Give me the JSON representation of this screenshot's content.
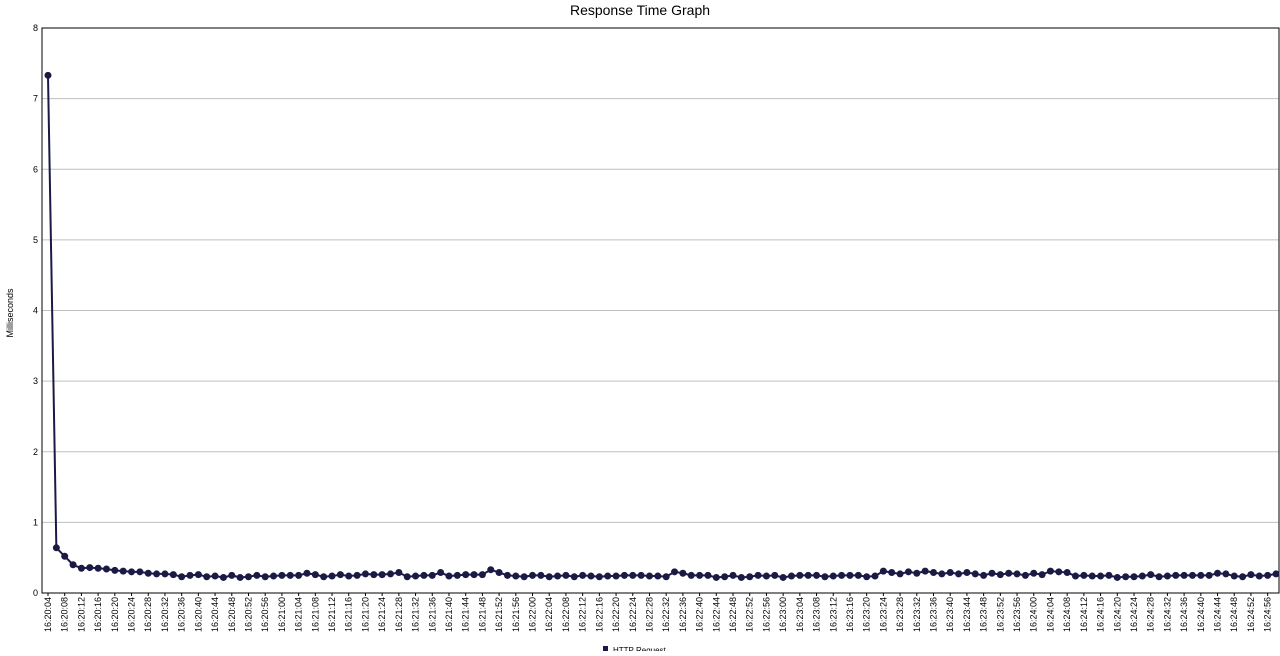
{
  "chart_data": {
    "type": "line",
    "title": "Response Time Graph",
    "y_label": "Milliseconds",
    "categories": [
      "16:20:04",
      null,
      "16:20:08",
      null,
      "16:20:12",
      null,
      "16:20:16",
      null,
      "16:20:20",
      null,
      "16:20:24",
      null,
      "16:20:28",
      null,
      "16:20:32",
      null,
      "16:20:36",
      null,
      "16:20:40",
      null,
      "16:20:44",
      null,
      "16:20:48",
      null,
      "16:20:52",
      null,
      "16:20:56",
      null,
      "16:21:00",
      null,
      "16:21:04",
      null,
      "16:21:08",
      null,
      "16:21:12",
      null,
      "16:21:16",
      null,
      "16:21:20",
      null,
      "16:21:24",
      null,
      "16:21:28",
      null,
      "16:21:32",
      null,
      "16:21:36",
      null,
      "16:21:40",
      null,
      "16:21:44",
      null,
      "16:21:48",
      null,
      "16:21:52",
      null,
      "16:21:56",
      null,
      "16:22:00",
      null,
      "16:22:04",
      null,
      "16:22:08",
      null,
      "16:22:12",
      null,
      "16:22:16",
      null,
      "16:22:20",
      null,
      "16:22:24",
      null,
      "16:22:28",
      null,
      "16:22:32",
      null,
      "16:22:36",
      null,
      "16:22:40",
      null,
      "16:22:44",
      null,
      "16:22:48",
      null,
      "16:22:52",
      null,
      "16:22:56",
      null,
      "16:23:00",
      null,
      "16:23:04",
      null,
      "16:23:08",
      null,
      "16:23:12",
      null,
      "16:23:16",
      null,
      "16:23:20",
      null,
      "16:23:24",
      null,
      "16:23:28",
      null,
      "16:23:32",
      null,
      "16:23:36",
      null,
      "16:23:40",
      null,
      "16:23:44",
      null,
      "16:23:48",
      null,
      "16:23:52",
      null,
      "16:23:56",
      null,
      "16:24:00",
      null,
      "16:24:04",
      null,
      "16:24:08",
      null,
      "16:24:12",
      null,
      "16:24:16",
      null,
      "16:24:20",
      null,
      "16:24:24",
      null,
      "16:24:28",
      null,
      "16:24:32",
      null,
      "16:24:36",
      null,
      "16:24:40",
      null,
      "16:24:44",
      null,
      "16:24:48",
      null,
      "16:24:52",
      null,
      "16:24:56",
      null
    ],
    "series": [
      {
        "name": "HTTP Request",
        "color": "#1a1a45",
        "values": [
          7.33,
          0.64,
          0.52,
          0.4,
          0.35,
          0.36,
          0.35,
          0.34,
          0.32,
          0.31,
          0.3,
          0.3,
          0.28,
          0.27,
          0.27,
          0.26,
          0.23,
          0.25,
          0.26,
          0.23,
          0.24,
          0.22,
          0.25,
          0.22,
          0.23,
          0.25,
          0.23,
          0.24,
          0.25,
          0.25,
          0.25,
          0.28,
          0.26,
          0.23,
          0.24,
          0.26,
          0.24,
          0.25,
          0.27,
          0.26,
          0.26,
          0.27,
          0.29,
          0.23,
          0.24,
          0.25,
          0.25,
          0.29,
          0.24,
          0.25,
          0.26,
          0.26,
          0.26,
          0.33,
          0.29,
          0.25,
          0.24,
          0.23,
          0.25,
          0.25,
          0.23,
          0.24,
          0.25,
          0.23,
          0.25,
          0.24,
          0.23,
          0.24,
          0.24,
          0.25,
          0.25,
          0.25,
          0.24,
          0.24,
          0.23,
          0.3,
          0.28,
          0.25,
          0.25,
          0.25,
          0.22,
          0.23,
          0.25,
          0.22,
          0.23,
          0.25,
          0.24,
          0.25,
          0.22,
          0.24,
          0.25,
          0.25,
          0.25,
          0.23,
          0.24,
          0.25,
          0.25,
          0.25,
          0.23,
          0.24,
          0.31,
          0.29,
          0.27,
          0.3,
          0.28,
          0.31,
          0.29,
          0.27,
          0.29,
          0.27,
          0.29,
          0.27,
          0.25,
          0.28,
          0.26,
          0.28,
          0.27,
          0.25,
          0.28,
          0.26,
          0.31,
          0.3,
          0.29,
          0.24,
          0.25,
          0.24,
          0.24,
          0.25,
          0.22,
          0.23,
          0.23,
          0.24,
          0.26,
          0.23,
          0.24,
          0.25,
          0.25,
          0.25,
          0.25,
          0.25,
          0.28,
          0.27,
          0.24,
          0.23,
          0.26,
          0.24,
          0.25,
          0.27
        ]
      }
    ],
    "ylim": [
      0,
      8
    ],
    "yticks": [
      0,
      1,
      2,
      3,
      4,
      5,
      6,
      7,
      8
    ],
    "grid": true
  }
}
